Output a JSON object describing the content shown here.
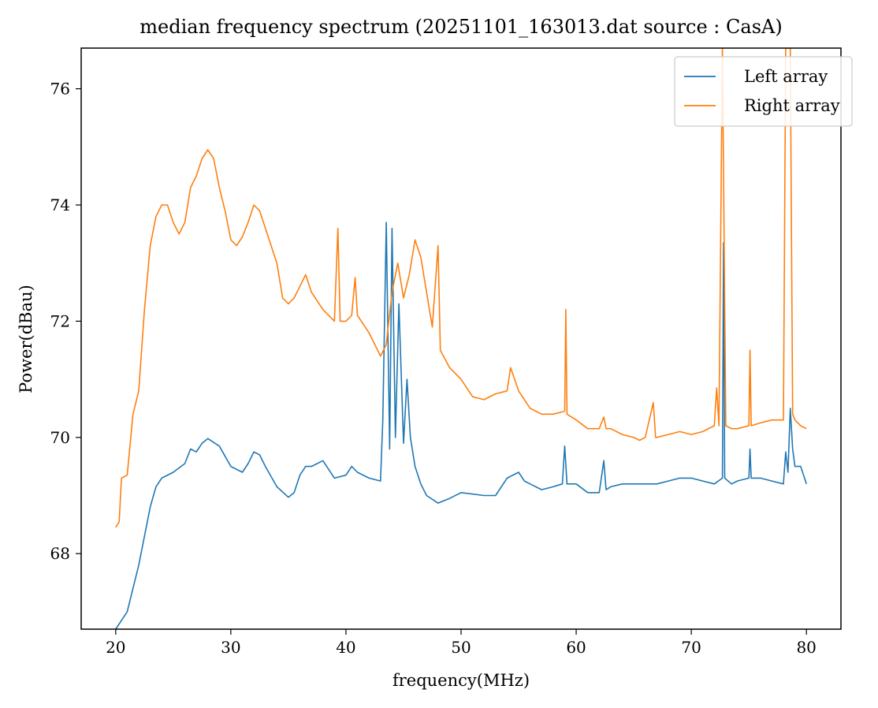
{
  "chart_data": {
    "type": "line",
    "title": "median frequency spectrum (20251101_163013.dat source : CasA)",
    "xlabel": "frequency(MHz)",
    "ylabel": "Power(dBau)",
    "xlim": [
      17,
      83
    ],
    "ylim": [
      66.7,
      76.7
    ],
    "xticks": [
      20,
      30,
      40,
      50,
      60,
      70,
      80
    ],
    "yticks": [
      68,
      70,
      72,
      74,
      76
    ],
    "grid": false,
    "legend_position": "top-right",
    "series": [
      {
        "name": "Left array",
        "color": "#1f77b4",
        "points": [
          [
            20,
            66.7
          ],
          [
            20.5,
            66.85
          ],
          [
            21,
            67.0
          ],
          [
            21.5,
            67.4
          ],
          [
            22,
            67.8
          ],
          [
            22.5,
            68.3
          ],
          [
            23,
            68.8
          ],
          [
            23.5,
            69.15
          ],
          [
            24,
            69.3
          ],
          [
            25,
            69.4
          ],
          [
            26,
            69.55
          ],
          [
            26.5,
            69.8
          ],
          [
            27,
            69.75
          ],
          [
            27.5,
            69.9
          ],
          [
            28,
            69.98
          ],
          [
            29,
            69.85
          ],
          [
            30,
            69.5
          ],
          [
            31,
            69.4
          ],
          [
            31.5,
            69.55
          ],
          [
            32,
            69.75
          ],
          [
            32.5,
            69.7
          ],
          [
            33,
            69.5
          ],
          [
            34,
            69.15
          ],
          [
            35,
            68.97
          ],
          [
            35.5,
            69.05
          ],
          [
            36,
            69.35
          ],
          [
            36.5,
            69.5
          ],
          [
            37,
            69.5
          ],
          [
            38,
            69.6
          ],
          [
            39,
            69.3
          ],
          [
            40,
            69.35
          ],
          [
            40.5,
            69.5
          ],
          [
            41,
            69.4
          ],
          [
            42,
            69.3
          ],
          [
            43,
            69.25
          ],
          [
            43.2,
            70.3
          ],
          [
            43.5,
            73.7
          ],
          [
            43.8,
            69.8
          ],
          [
            44,
            73.6
          ],
          [
            44.3,
            70.0
          ],
          [
            44.6,
            72.3
          ],
          [
            45,
            69.9
          ],
          [
            45.3,
            71.0
          ],
          [
            45.6,
            70.0
          ],
          [
            46,
            69.5
          ],
          [
            46.5,
            69.2
          ],
          [
            47,
            69.0
          ],
          [
            48,
            68.87
          ],
          [
            49,
            68.95
          ],
          [
            50,
            69.05
          ],
          [
            52,
            69.0
          ],
          [
            53,
            69.0
          ],
          [
            54,
            69.3
          ],
          [
            55,
            69.4
          ],
          [
            55.5,
            69.25
          ],
          [
            56,
            69.2
          ],
          [
            57,
            69.1
          ],
          [
            58,
            69.15
          ],
          [
            58.8,
            69.2
          ],
          [
            59,
            69.85
          ],
          [
            59.2,
            69.2
          ],
          [
            60,
            69.2
          ],
          [
            61,
            69.05
          ],
          [
            62,
            69.05
          ],
          [
            62.4,
            69.6
          ],
          [
            62.6,
            69.1
          ],
          [
            63,
            69.15
          ],
          [
            64,
            69.2
          ],
          [
            65,
            69.2
          ],
          [
            66,
            69.2
          ],
          [
            67,
            69.2
          ],
          [
            68,
            69.25
          ],
          [
            69,
            69.3
          ],
          [
            70,
            69.3
          ],
          [
            71,
            69.25
          ],
          [
            72,
            69.2
          ],
          [
            72.7,
            69.3
          ],
          [
            72.8,
            73.35
          ],
          [
            72.9,
            69.3
          ],
          [
            73.5,
            69.2
          ],
          [
            74,
            69.25
          ],
          [
            75,
            69.3
          ],
          [
            75.1,
            69.8
          ],
          [
            75.2,
            69.3
          ],
          [
            76,
            69.3
          ],
          [
            77,
            69.25
          ],
          [
            78,
            69.2
          ],
          [
            78.2,
            69.75
          ],
          [
            78.4,
            69.4
          ],
          [
            78.6,
            70.5
          ],
          [
            78.8,
            69.8
          ],
          [
            79,
            69.5
          ],
          [
            79.5,
            69.5
          ],
          [
            80,
            69.2
          ]
        ]
      },
      {
        "name": "Right array",
        "color": "#ff7f0e",
        "points": [
          [
            20,
            68.45
          ],
          [
            20.3,
            68.55
          ],
          [
            20.5,
            69.3
          ],
          [
            21,
            69.35
          ],
          [
            21.5,
            70.4
          ],
          [
            22,
            70.8
          ],
          [
            22.5,
            72.2
          ],
          [
            23,
            73.3
          ],
          [
            23.5,
            73.8
          ],
          [
            24,
            74.0
          ],
          [
            24.5,
            74.0
          ],
          [
            25,
            73.7
          ],
          [
            25.5,
            73.5
          ],
          [
            26,
            73.7
          ],
          [
            26.5,
            74.3
          ],
          [
            27,
            74.5
          ],
          [
            27.5,
            74.8
          ],
          [
            28,
            74.95
          ],
          [
            28.5,
            74.8
          ],
          [
            29,
            74.3
          ],
          [
            29.5,
            73.9
          ],
          [
            30,
            73.4
          ],
          [
            30.5,
            73.3
          ],
          [
            31,
            73.45
          ],
          [
            31.5,
            73.7
          ],
          [
            32,
            74.0
          ],
          [
            32.5,
            73.9
          ],
          [
            33,
            73.6
          ],
          [
            34,
            73.0
          ],
          [
            34.5,
            72.4
          ],
          [
            35,
            72.3
          ],
          [
            35.5,
            72.4
          ],
          [
            36,
            72.6
          ],
          [
            36.5,
            72.8
          ],
          [
            37,
            72.5
          ],
          [
            38,
            72.2
          ],
          [
            39,
            72.0
          ],
          [
            39.3,
            73.6
          ],
          [
            39.5,
            72.0
          ],
          [
            40,
            72.0
          ],
          [
            40.5,
            72.1
          ],
          [
            40.8,
            72.75
          ],
          [
            41,
            72.1
          ],
          [
            42,
            71.8
          ],
          [
            43,
            71.4
          ],
          [
            43.5,
            71.6
          ],
          [
            44,
            72.5
          ],
          [
            44.5,
            73.0
          ],
          [
            45,
            72.4
          ],
          [
            45.5,
            72.8
          ],
          [
            46,
            73.4
          ],
          [
            46.5,
            73.1
          ],
          [
            47,
            72.5
          ],
          [
            47.5,
            71.9
          ],
          [
            48,
            73.3
          ],
          [
            48.2,
            71.5
          ],
          [
            49,
            71.2
          ],
          [
            50,
            71.0
          ],
          [
            51,
            70.7
          ],
          [
            52,
            70.65
          ],
          [
            53,
            70.75
          ],
          [
            54,
            70.8
          ],
          [
            54.3,
            71.2
          ],
          [
            55,
            70.8
          ],
          [
            56,
            70.5
          ],
          [
            57,
            70.4
          ],
          [
            58,
            70.4
          ],
          [
            59,
            70.45
          ],
          [
            59.1,
            72.2
          ],
          [
            59.2,
            70.4
          ],
          [
            60,
            70.3
          ],
          [
            61,
            70.15
          ],
          [
            62,
            70.15
          ],
          [
            62.4,
            70.35
          ],
          [
            62.6,
            70.15
          ],
          [
            63,
            70.15
          ],
          [
            64,
            70.05
          ],
          [
            65,
            70.0
          ],
          [
            65.5,
            69.95
          ],
          [
            66,
            70.0
          ],
          [
            66.7,
            70.6
          ],
          [
            66.9,
            70.0
          ],
          [
            67,
            70.0
          ],
          [
            68,
            70.05
          ],
          [
            69,
            70.1
          ],
          [
            70,
            70.05
          ],
          [
            71,
            70.1
          ],
          [
            72,
            70.2
          ],
          [
            72.2,
            70.85
          ],
          [
            72.4,
            70.2
          ],
          [
            72.7,
            76.7
          ],
          [
            73,
            70.2
          ],
          [
            73.5,
            70.15
          ],
          [
            74,
            70.15
          ],
          [
            75,
            70.2
          ],
          [
            75.1,
            71.5
          ],
          [
            75.2,
            70.2
          ],
          [
            76,
            70.25
          ],
          [
            77,
            70.3
          ],
          [
            78,
            70.3
          ],
          [
            78.2,
            76.7
          ],
          [
            78.6,
            76.7
          ],
          [
            78.8,
            70.4
          ],
          [
            79,
            70.3
          ],
          [
            79.5,
            70.2
          ],
          [
            80,
            70.15
          ]
        ]
      }
    ]
  }
}
